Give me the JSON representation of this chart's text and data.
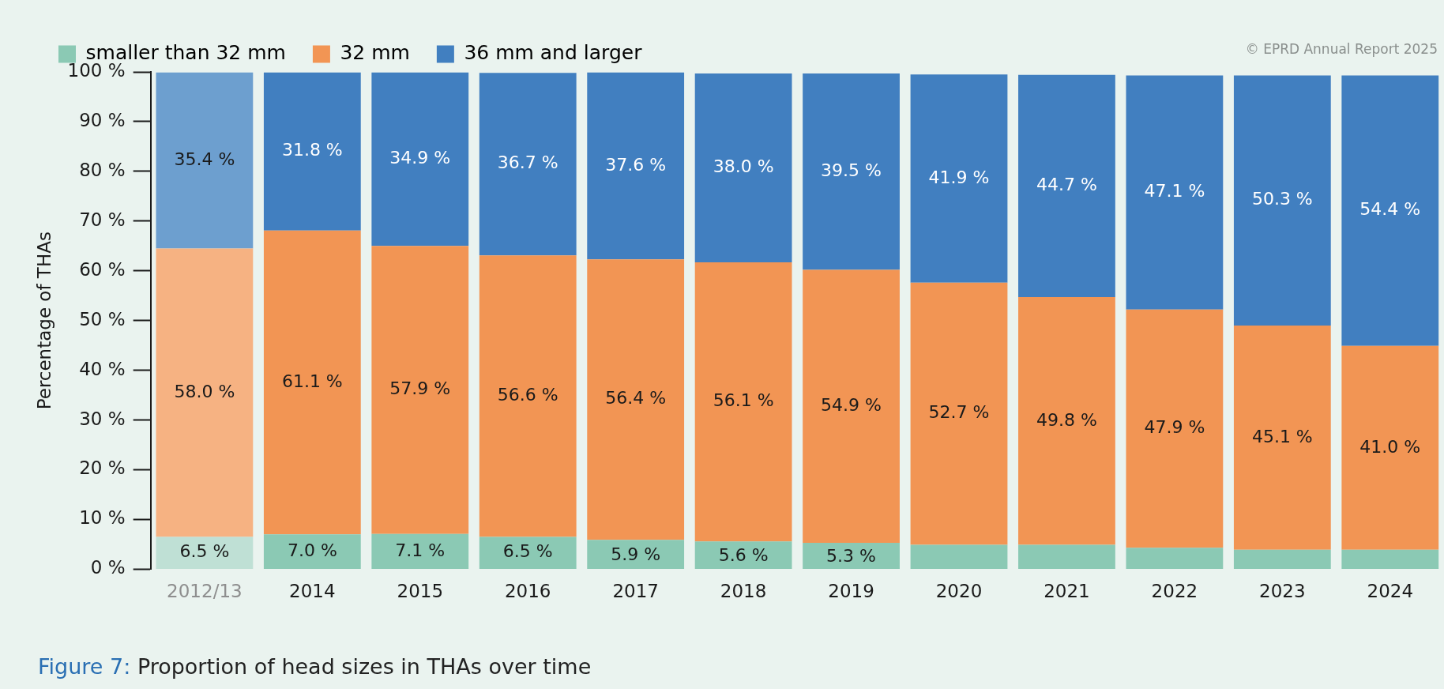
{
  "chart_data": {
    "type": "bar",
    "stacked": true,
    "title": "Figure 7: Proportion of head sizes in THAs over time",
    "ylabel": "Percentage of THAs",
    "categories": [
      "2012/13",
      "2014",
      "2015",
      "2016",
      "2017",
      "2018",
      "2019",
      "2020",
      "2021",
      "2022",
      "2023",
      "2024"
    ],
    "series": [
      {
        "name": "smaller than 32 mm",
        "color": "#8bc9b4",
        "colors": [
          "#bfe0d5",
          "#8bc9b4",
          "#8bc9b4",
          "#8bc9b4",
          "#8bc9b4",
          "#8bc9b4",
          "#8bc9b4",
          "#8bc9b4",
          "#8bc9b4",
          "#8bc9b4",
          "#8bc9b4",
          "#8bc9b4"
        ],
        "values": [
          6.5,
          7.0,
          7.1,
          6.5,
          5.9,
          5.6,
          5.3,
          4.9,
          4.9,
          4.3,
          3.9,
          3.9
        ],
        "value_labels": [
          "6.5 %",
          "7.0 %",
          "7.1 %",
          "6.5 %",
          "5.9 %",
          "5.6 %",
          "5.3 %",
          null,
          null,
          null,
          null,
          null
        ]
      },
      {
        "name": "32 mm",
        "color": "#f29554",
        "colors": [
          "#f6b282",
          "#f29554",
          "#f29554",
          "#f29554",
          "#f29554",
          "#f29554",
          "#f29554",
          "#f29554",
          "#f29554",
          "#f29554",
          "#f29554",
          "#f29554"
        ],
        "values": [
          58.0,
          61.1,
          57.9,
          56.6,
          56.4,
          56.1,
          54.9,
          52.7,
          49.8,
          47.9,
          45.1,
          41.0
        ],
        "value_labels": [
          "58.0 %",
          "61.1 %",
          "57.9 %",
          "56.6 %",
          "56.4 %",
          "56.1 %",
          "54.9 %",
          "52.7 %",
          "49.8 %",
          "47.9 %",
          "45.1 %",
          "41.0 %"
        ]
      },
      {
        "name": "36 mm and larger",
        "color": "#417fc0",
        "colors": [
          "#6d9fcf",
          "#417fc0",
          "#417fc0",
          "#417fc0",
          "#417fc0",
          "#417fc0",
          "#417fc0",
          "#417fc0",
          "#417fc0",
          "#417fc0",
          "#417fc0",
          "#417fc0"
        ],
        "values": [
          35.4,
          31.8,
          34.9,
          36.7,
          37.6,
          38.0,
          39.5,
          41.9,
          44.7,
          47.1,
          50.3,
          54.4
        ],
        "value_labels": [
          "35.4 %",
          "31.8 %",
          "34.9 %",
          "36.7 %",
          "37.6 %",
          "38.0 %",
          "39.5 %",
          "41.9 %",
          "44.7 %",
          "47.1 %",
          "50.3 %",
          "54.4 %"
        ]
      }
    ],
    "ylim": [
      0,
      100
    ],
    "yticks": [
      {
        "value": 0,
        "label": "0 %"
      },
      {
        "value": 10,
        "label": "10 %"
      },
      {
        "value": 20,
        "label": "20 %"
      },
      {
        "value": 30,
        "label": "30 %"
      },
      {
        "value": 40,
        "label": "40 %"
      },
      {
        "value": 50,
        "label": "50 %"
      },
      {
        "value": 60,
        "label": "60 %"
      },
      {
        "value": 70,
        "label": "70 %"
      },
      {
        "value": 80,
        "label": "80 %"
      },
      {
        "value": 90,
        "label": "90 %"
      },
      {
        "value": 100,
        "label": "100 %"
      }
    ],
    "grid": false,
    "legend": "top",
    "annotations": [
      "© EPRD Annual Report 2025"
    ]
  }
}
